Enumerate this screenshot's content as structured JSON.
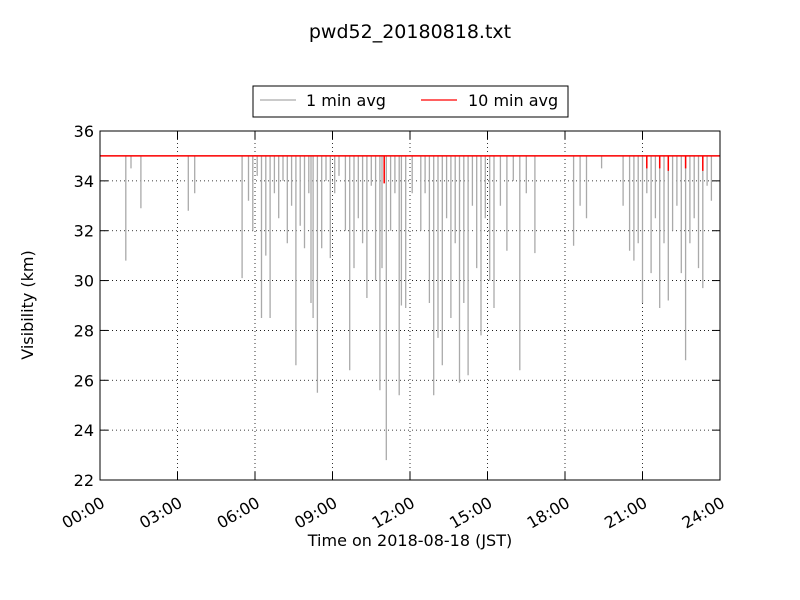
{
  "chart_data": {
    "type": "line",
    "title": "pwd52_20180818.txt",
    "xlabel": "Time on 2018-08-18 (JST)",
    "ylabel": "Visibility (km)",
    "xlim": [
      "00:00",
      "24:00"
    ],
    "ylim": [
      22,
      36
    ],
    "x_ticks": [
      "00:00",
      "03:00",
      "06:00",
      "09:00",
      "12:00",
      "15:00",
      "18:00",
      "21:00",
      "24:00"
    ],
    "y_ticks": [
      "22",
      "24",
      "26",
      "28",
      "30",
      "32",
      "34",
      "36"
    ],
    "grid": true,
    "legend_position": "top-center",
    "baseline_km": 35.0,
    "series": [
      {
        "name": "1 min avg",
        "color": "#aaaaaa",
        "dips": [
          [
            "01:00",
            30.8
          ],
          [
            "01:12",
            34.5
          ],
          [
            "01:35",
            32.9
          ],
          [
            "03:25",
            32.8
          ],
          [
            "03:40",
            33.5
          ],
          [
            "05:30",
            30.1
          ],
          [
            "05:45",
            33.2
          ],
          [
            "05:55",
            32.0
          ],
          [
            "06:05",
            34.2
          ],
          [
            "06:15",
            28.5
          ],
          [
            "06:25",
            31.0
          ],
          [
            "06:35",
            28.5
          ],
          [
            "06:45",
            33.5
          ],
          [
            "06:55",
            32.5
          ],
          [
            "07:05",
            34.0
          ],
          [
            "07:15",
            31.5
          ],
          [
            "07:25",
            33.0
          ],
          [
            "07:35",
            26.6
          ],
          [
            "07:45",
            32.2
          ],
          [
            "07:55",
            31.3
          ],
          [
            "08:05",
            33.5
          ],
          [
            "08:10",
            29.1
          ],
          [
            "08:15",
            28.5
          ],
          [
            "08:25",
            25.5
          ],
          [
            "08:35",
            31.3
          ],
          [
            "08:45",
            34.0
          ],
          [
            "08:55",
            30.9
          ],
          [
            "09:05",
            33.5
          ],
          [
            "09:15",
            34.2
          ],
          [
            "09:30",
            32.0
          ],
          [
            "09:40",
            26.4
          ],
          [
            "09:50",
            30.5
          ],
          [
            "10:00",
            32.5
          ],
          [
            "10:10",
            31.5
          ],
          [
            "10:20",
            29.3
          ],
          [
            "10:30",
            33.8
          ],
          [
            "10:40",
            30.0
          ],
          [
            "10:50",
            25.6
          ],
          [
            "10:55",
            30.5
          ],
          [
            "11:05",
            22.8
          ],
          [
            "11:15",
            32.0
          ],
          [
            "11:25",
            33.5
          ],
          [
            "11:35",
            25.4
          ],
          [
            "11:40",
            29.0
          ],
          [
            "11:50",
            28.9
          ],
          [
            "12:05",
            33.5
          ],
          [
            "12:25",
            32.0
          ],
          [
            "12:35",
            33.5
          ],
          [
            "12:45",
            29.1
          ],
          [
            "12:55",
            25.4
          ],
          [
            "13:05",
            27.7
          ],
          [
            "13:15",
            26.6
          ],
          [
            "13:25",
            32.5
          ],
          [
            "13:35",
            28.5
          ],
          [
            "13:45",
            31.5
          ],
          [
            "13:55",
            25.9
          ],
          [
            "14:05",
            29.1
          ],
          [
            "14:15",
            26.2
          ],
          [
            "14:25",
            33.0
          ],
          [
            "14:35",
            30.5
          ],
          [
            "14:45",
            27.8
          ],
          [
            "14:55",
            32.5
          ],
          [
            "15:05",
            30.0
          ],
          [
            "15:15",
            28.9
          ],
          [
            "15:30",
            33.0
          ],
          [
            "15:45",
            31.2
          ],
          [
            "16:00",
            34.0
          ],
          [
            "16:15",
            26.4
          ],
          [
            "16:30",
            33.5
          ],
          [
            "16:50",
            31.1
          ],
          [
            "18:20",
            31.4
          ],
          [
            "18:35",
            33.0
          ],
          [
            "18:50",
            32.5
          ],
          [
            "19:25",
            34.5
          ],
          [
            "20:15",
            33.0
          ],
          [
            "20:30",
            31.2
          ],
          [
            "20:40",
            30.8
          ],
          [
            "20:50",
            31.5
          ],
          [
            "21:00",
            29.1
          ],
          [
            "21:10",
            33.5
          ],
          [
            "21:20",
            30.3
          ],
          [
            "21:30",
            32.5
          ],
          [
            "21:40",
            28.9
          ],
          [
            "21:50",
            31.5
          ],
          [
            "22:00",
            29.2
          ],
          [
            "22:10",
            32.0
          ],
          [
            "22:20",
            33.0
          ],
          [
            "22:30",
            30.3
          ],
          [
            "22:40",
            26.8
          ],
          [
            "22:50",
            31.5
          ],
          [
            "23:00",
            32.5
          ],
          [
            "23:10",
            30.5
          ],
          [
            "23:20",
            29.7
          ],
          [
            "23:30",
            33.8
          ],
          [
            "23:40",
            33.2
          ]
        ]
      },
      {
        "name": "10 min avg",
        "color": "#ff0000",
        "dips": [
          [
            "11:00",
            33.9
          ],
          [
            "21:10",
            34.5
          ],
          [
            "21:40",
            34.5
          ],
          [
            "22:00",
            34.4
          ],
          [
            "22:40",
            34.5
          ],
          [
            "23:20",
            34.4
          ]
        ]
      }
    ]
  }
}
